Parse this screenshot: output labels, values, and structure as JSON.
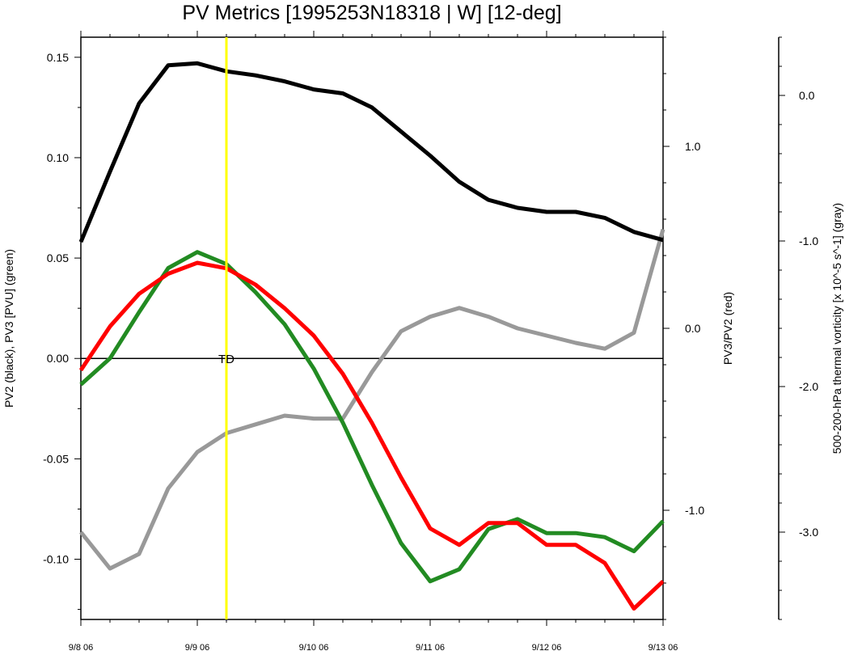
{
  "chart_data": {
    "type": "line",
    "title": "PV Metrics [1995253N18318 | W] [12-deg]",
    "x_tick_labels": [
      "9/8 06",
      "9/9 06",
      "9/10 06",
      "9/11 06",
      "9/12 06",
      "9/13 06"
    ],
    "xlim": [
      0,
      5
    ],
    "x": [
      0,
      0.25,
      0.5,
      0.75,
      1.0,
      1.25,
      1.5,
      1.75,
      2.0,
      2.25,
      2.5,
      2.75,
      3.0,
      3.25,
      3.5,
      3.75,
      4.0,
      4.25,
      4.5,
      4.75,
      5.0
    ],
    "axes": {
      "left": {
        "label": "PV2 (black), PV3 [PVU] (green)",
        "ylim": [
          -0.13,
          0.16
        ],
        "tick_values": [
          0.15,
          0.1,
          0.05,
          0.0,
          -0.05,
          -0.1
        ],
        "tick_labels": [
          "0.15",
          "0.10",
          "0.05",
          "0.00",
          "-0.05",
          "-0.10"
        ]
      },
      "right_red": {
        "label": "PV3/PV2 (red)",
        "ylim": [
          -1.6,
          1.6
        ],
        "tick_values": [
          1.0,
          0.0,
          -1.0
        ],
        "tick_labels": [
          "1.0",
          "0.0",
          "-1.0"
        ]
      },
      "right_gray": {
        "label": "500-200-hPa thermal vorticity [x 10^-5 s^-1] (gray)",
        "ylim": [
          -3.6,
          0.4
        ],
        "tick_values": [
          0.0,
          -1.0,
          -2.0,
          -3.0
        ],
        "tick_labels": [
          "0.0",
          "-1.0",
          "-2.0",
          "-3.0"
        ]
      }
    },
    "series": [
      {
        "name": "PV2",
        "axis": "left",
        "color": "#000000",
        "values": [
          0.058,
          0.093,
          0.127,
          0.146,
          0.147,
          0.143,
          0.141,
          0.138,
          0.134,
          0.132,
          0.125,
          0.113,
          0.101,
          0.088,
          0.079,
          0.075,
          0.073,
          0.073,
          0.07,
          0.063,
          0.059
        ]
      },
      {
        "name": "PV3",
        "axis": "left",
        "color": "#228B22",
        "values": [
          -0.013,
          0.0,
          0.023,
          0.045,
          0.053,
          0.047,
          0.033,
          0.017,
          -0.005,
          -0.032,
          -0.063,
          -0.092,
          -0.111,
          -0.105,
          -0.085,
          -0.08,
          -0.087,
          -0.087,
          -0.089,
          -0.096,
          -0.081
        ]
      },
      {
        "name": "PV3/PV2",
        "axis": "right_red",
        "color": "#ff0000",
        "values": [
          -0.23,
          0.01,
          0.19,
          0.3,
          0.36,
          0.33,
          0.24,
          0.11,
          -0.04,
          -0.25,
          -0.52,
          -0.82,
          -1.1,
          -1.19,
          -1.07,
          -1.07,
          -1.19,
          -1.19,
          -1.29,
          -1.54,
          -1.39
        ]
      },
      {
        "name": "thermal vorticity",
        "axis": "right_gray",
        "color": "#999999",
        "values": [
          -3.0,
          -3.25,
          -3.15,
          -2.7,
          -2.45,
          -2.32,
          -2.26,
          -2.2,
          -2.22,
          -2.22,
          -1.9,
          -1.62,
          -1.52,
          -1.46,
          -1.52,
          -1.6,
          -1.65,
          -1.7,
          -1.74,
          -1.63,
          -0.92
        ]
      }
    ],
    "zero_line": {
      "axis": "left",
      "value": 0.0
    },
    "marker": {
      "x": 1.25,
      "color": "#ffff00",
      "label": "TD",
      "label_y": 0.0
    }
  }
}
